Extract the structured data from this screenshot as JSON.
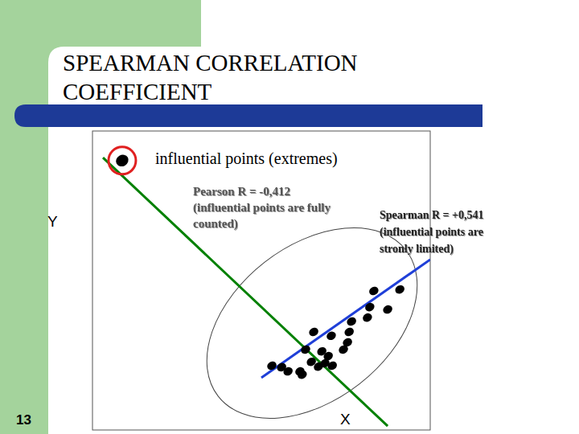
{
  "chart_data": {
    "type": "scatter",
    "title": "SPEARMAN CORRELATION COEFFICIENT",
    "x_label": "X",
    "y_label": "Y",
    "xlim": [
      0,
      100
    ],
    "ylim": [
      0,
      100
    ],
    "tick_labels": false,
    "annotations": [
      {
        "lines": [
          "influential points (extremes)"
        ]
      },
      {
        "lines": [
          "Pearson R = -0,412",
          "(influential points are fully",
          "counted)"
        ]
      },
      {
        "lines": [
          "Spearman R = +0,541",
          "(influential points are",
          "stronly limited)"
        ]
      }
    ],
    "series": [
      {
        "type": "scatter",
        "color": "#000000",
        "marker": "circle",
        "x": [
          8.8,
          83.3,
          91.0,
          82.1,
          87.4,
          76.7,
          81.4,
          76.0,
          70.7,
          65.5,
          63.1,
          67.9,
          74.3,
          69.8,
          64.8,
          68.8,
          71.0,
          66.9,
          61.4,
          56.0,
          53.1,
          57.9,
          62.1,
          75.5
        ],
        "values": [
          90.1,
          46.5,
          47.0,
          41.1,
          40.3,
          36.3,
          37.6,
          32.8,
          31.5,
          32.8,
          26.9,
          26.3,
          26.9,
          24.7,
          22.8,
          22.3,
          21.5,
          21.2,
          19.6,
          21.0,
          21.5,
          19.6,
          18.5,
          29.3
        ]
      },
      {
        "type": "line",
        "color": "#008000",
        "line_style": "solid",
        "x": [
          3.1,
          87.4
        ],
        "values": [
          91.1,
          1.3
        ]
      },
      {
        "type": "line",
        "color": "#1f3fd8",
        "line_style": "solid",
        "x": [
          50.0,
          100.0
        ],
        "values": [
          17.5,
          57.0
        ]
      }
    ]
  },
  "slide": {
    "number": "13"
  }
}
